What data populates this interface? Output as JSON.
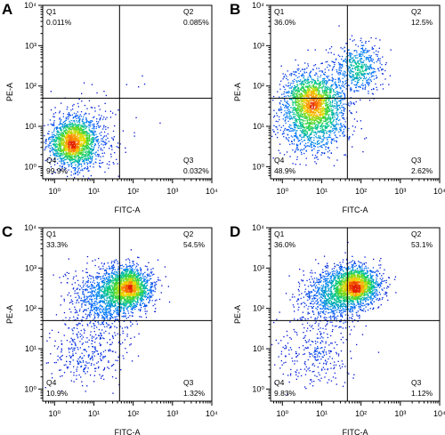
{
  "chart_data": [
    {
      "type": "scatter",
      "panel_label": "A",
      "xlabel": "FITC-A",
      "ylabel": "PE-A",
      "x_scale": "log",
      "y_scale": "log",
      "xlim": [
        0.5,
        10000
      ],
      "ylim": [
        0.5,
        10000
      ],
      "x_ticks": [
        "10⁰",
        "10¹",
        "10²",
        "10³",
        "10⁴"
      ],
      "y_ticks": [
        "10⁰",
        "10¹",
        "10²",
        "10³",
        "10⁴"
      ],
      "gate": {
        "x": 45,
        "y": 50
      },
      "quadrants": [
        {
          "name": "Q1",
          "percent": "0.011%"
        },
        {
          "name": "Q2",
          "percent": "0.085%"
        },
        {
          "name": "Q3",
          "percent": "0.032%"
        },
        {
          "name": "Q4",
          "percent": "99.9%"
        }
      ],
      "clusters": [
        {
          "center": [
            3,
            4
          ],
          "spread": [
            0.3,
            0.3
          ],
          "count": 1700
        },
        {
          "center": [
            6,
            6
          ],
          "spread": [
            0.5,
            0.45
          ],
          "count": 300
        },
        {
          "center": [
            120,
            140
          ],
          "spread": [
            0.15,
            0.15
          ],
          "count": 4
        }
      ]
    },
    {
      "type": "scatter",
      "panel_label": "B",
      "xlabel": "FITC-A",
      "ylabel": "PE-A",
      "x_scale": "log",
      "y_scale": "log",
      "xlim": [
        0.5,
        10000
      ],
      "ylim": [
        0.5,
        10000
      ],
      "x_ticks": [
        "10⁰",
        "10¹",
        "10²",
        "10³",
        "10⁴"
      ],
      "y_ticks": [
        "10⁰",
        "10¹",
        "10²",
        "10³",
        "10⁴"
      ],
      "gate": {
        "x": 45,
        "y": 50
      },
      "quadrants": [
        {
          "name": "Q1",
          "percent": "36.0%"
        },
        {
          "name": "Q2",
          "percent": "12.5%"
        },
        {
          "name": "Q3",
          "percent": "2.62%"
        },
        {
          "name": "Q4",
          "percent": "48.9%"
        }
      ],
      "clusters": [
        {
          "center": [
            6,
            40
          ],
          "spread": [
            0.4,
            0.38
          ],
          "count": 1900
        },
        {
          "center": [
            80,
            300
          ],
          "spread": [
            0.32,
            0.32
          ],
          "count": 550
        },
        {
          "center": [
            6,
            8
          ],
          "spread": [
            0.45,
            0.35
          ],
          "count": 550
        }
      ]
    },
    {
      "type": "scatter",
      "panel_label": "C",
      "xlabel": "FITC-A",
      "ylabel": "PE-A",
      "x_scale": "log",
      "y_scale": "log",
      "xlim": [
        0.5,
        10000
      ],
      "ylim": [
        0.5,
        10000
      ],
      "x_ticks": [
        "10⁰",
        "10¹",
        "10²",
        "10³",
        "10⁴"
      ],
      "y_ticks": [
        "10⁰",
        "10¹",
        "10²",
        "10³",
        "10⁴"
      ],
      "gate": {
        "x": 45,
        "y": 50
      },
      "quadrants": [
        {
          "name": "Q1",
          "percent": "33.3%"
        },
        {
          "name": "Q2",
          "percent": "54.5%"
        },
        {
          "name": "Q3",
          "percent": "1.32%"
        },
        {
          "name": "Q4",
          "percent": "10.9%"
        }
      ],
      "clusters": [
        {
          "center": [
            75,
            350
          ],
          "spread": [
            0.3,
            0.26
          ],
          "count": 1700
        },
        {
          "center": [
            18,
            180
          ],
          "spread": [
            0.42,
            0.38
          ],
          "count": 900
        },
        {
          "center": [
            6,
            8
          ],
          "spread": [
            0.5,
            0.42
          ],
          "count": 330
        }
      ]
    },
    {
      "type": "scatter",
      "panel_label": "D",
      "xlabel": "FITC-A",
      "ylabel": "PE-A",
      "x_scale": "log",
      "y_scale": "log",
      "xlim": [
        0.5,
        10000
      ],
      "ylim": [
        0.5,
        10000
      ],
      "x_ticks": [
        "10⁰",
        "10¹",
        "10²",
        "10³",
        "10⁴"
      ],
      "y_ticks": [
        "10⁰",
        "10¹",
        "10²",
        "10³",
        "10⁴"
      ],
      "gate": {
        "x": 45,
        "y": 50
      },
      "quadrants": [
        {
          "name": "Q1",
          "percent": "36.0%"
        },
        {
          "name": "Q2",
          "percent": "53.1%"
        },
        {
          "name": "Q3",
          "percent": "1.12%"
        },
        {
          "name": "Q4",
          "percent": "9.83%"
        }
      ],
      "clusters": [
        {
          "center": [
            70,
            380
          ],
          "spread": [
            0.3,
            0.24
          ],
          "count": 1700
        },
        {
          "center": [
            18,
            200
          ],
          "spread": [
            0.4,
            0.36
          ],
          "count": 950
        },
        {
          "center": [
            6,
            8
          ],
          "spread": [
            0.5,
            0.42
          ],
          "count": 300
        }
      ]
    }
  ]
}
